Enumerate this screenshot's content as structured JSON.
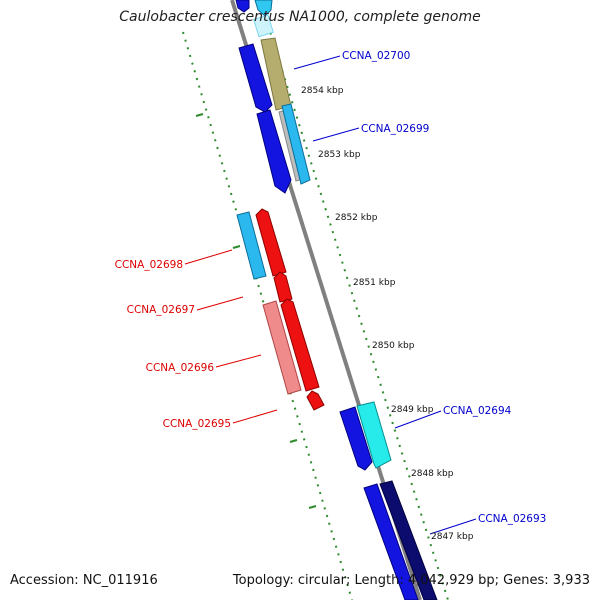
{
  "title": "Caulobacter crescentus NA1000, complete genome",
  "footer": {
    "accession": "Accession: NC_011916",
    "topology": "Topology: circular; Length: 4,042,929 bp; Genes: 3,933"
  },
  "colors": {
    "forward_label": "#0000cc",
    "reverse_label": "#dd0000",
    "backbone": "#808080",
    "ticks": "#2e8b2e"
  },
  "scale_ticks": [
    "2854 kbp",
    "2853 kbp",
    "2852 kbp",
    "2851 kbp",
    "2850 kbp",
    "2849 kbp",
    "2848 kbp",
    "2847 kbp"
  ],
  "gene_labels": {
    "forward": [
      "CCNA_02700",
      "CCNA_02699",
      "CCNA_02694",
      "CCNA_02693"
    ],
    "reverse": [
      "CCNA_02698",
      "CCNA_02697",
      "CCNA_02696",
      "CCNA_02695"
    ]
  }
}
